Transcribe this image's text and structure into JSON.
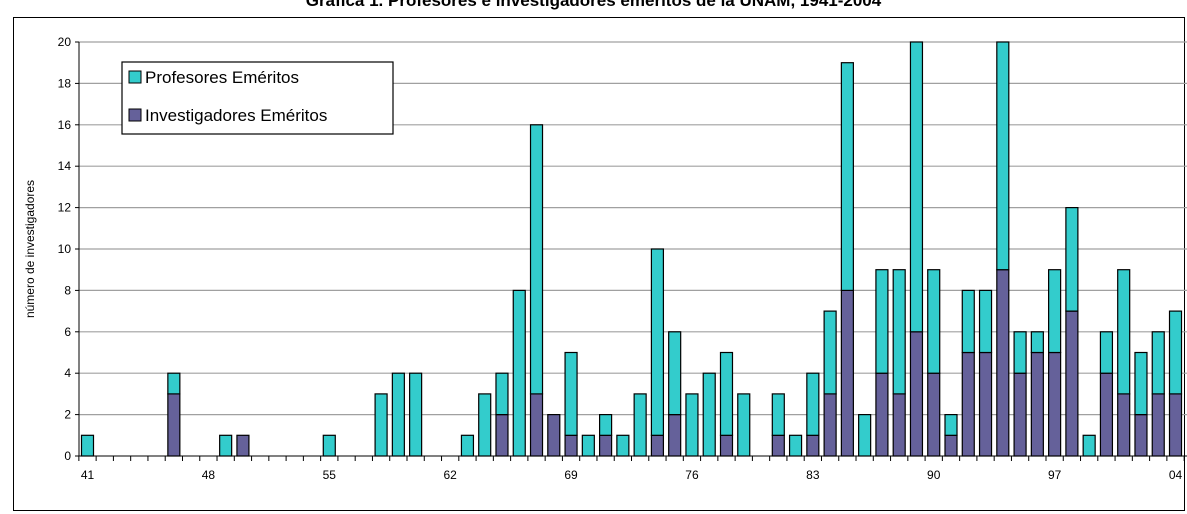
{
  "chart_data": {
    "type": "bar",
    "stacked": true,
    "title": "Gráfica 1. Profesores e investigadores eméritos de la UNAM, 1941-2004",
    "ylabel": "número de investigadores",
    "xlabel": "",
    "ylim": [
      0,
      20
    ],
    "yticks": [
      0,
      2,
      4,
      6,
      8,
      10,
      12,
      14,
      16,
      18,
      20
    ],
    "grid": true,
    "legend_position": "top-left",
    "x_tick_labels": [
      "41",
      "48",
      "55",
      "62",
      "69",
      "76",
      "83",
      "90",
      "97",
      "04"
    ],
    "x_tick_label_years": [
      1941,
      1948,
      1955,
      1962,
      1969,
      1976,
      1983,
      1990,
      1997,
      2004
    ],
    "years": [
      1941,
      1942,
      1943,
      1944,
      1945,
      1946,
      1947,
      1948,
      1949,
      1950,
      1951,
      1952,
      1953,
      1954,
      1955,
      1956,
      1957,
      1958,
      1959,
      1960,
      1961,
      1962,
      1963,
      1964,
      1965,
      1966,
      1967,
      1968,
      1969,
      1970,
      1971,
      1972,
      1973,
      1974,
      1975,
      1976,
      1977,
      1978,
      1979,
      1980,
      1981,
      1982,
      1983,
      1984,
      1985,
      1986,
      1987,
      1988,
      1989,
      1990,
      1991,
      1992,
      1993,
      1994,
      1995,
      1996,
      1997,
      1998,
      1999,
      2000,
      2001,
      2002,
      2003,
      2004
    ],
    "series": [
      {
        "name": "Investigadores Eméritos",
        "color": "#65619a",
        "values": [
          0,
          0,
          0,
          0,
          0,
          3,
          0,
          0,
          0,
          1,
          0,
          0,
          0,
          0,
          0,
          0,
          0,
          0,
          0,
          0,
          0,
          0,
          0,
          0,
          2,
          0,
          3,
          2,
          1,
          0,
          1,
          0,
          0,
          1,
          2,
          0,
          0,
          1,
          0,
          0,
          1,
          0,
          1,
          3,
          8,
          0,
          4,
          3,
          6,
          4,
          1,
          5,
          5,
          9,
          4,
          5,
          5,
          7,
          0,
          4,
          3,
          2,
          3,
          3
        ]
      },
      {
        "name": "Profesores Eméritos",
        "color": "#33cccc",
        "values": [
          1,
          0,
          0,
          0,
          0,
          1,
          0,
          0,
          1,
          0,
          0,
          0,
          0,
          0,
          1,
          0,
          0,
          3,
          4,
          4,
          0,
          0,
          1,
          3,
          2,
          8,
          13,
          0,
          4,
          1,
          1,
          1,
          3,
          9,
          4,
          3,
          4,
          4,
          3,
          0,
          2,
          1,
          3,
          4,
          11,
          2,
          5,
          6,
          14,
          5,
          1,
          3,
          3,
          11,
          2,
          1,
          4,
          5,
          1,
          2,
          6,
          3,
          3,
          4
        ]
      }
    ]
  }
}
